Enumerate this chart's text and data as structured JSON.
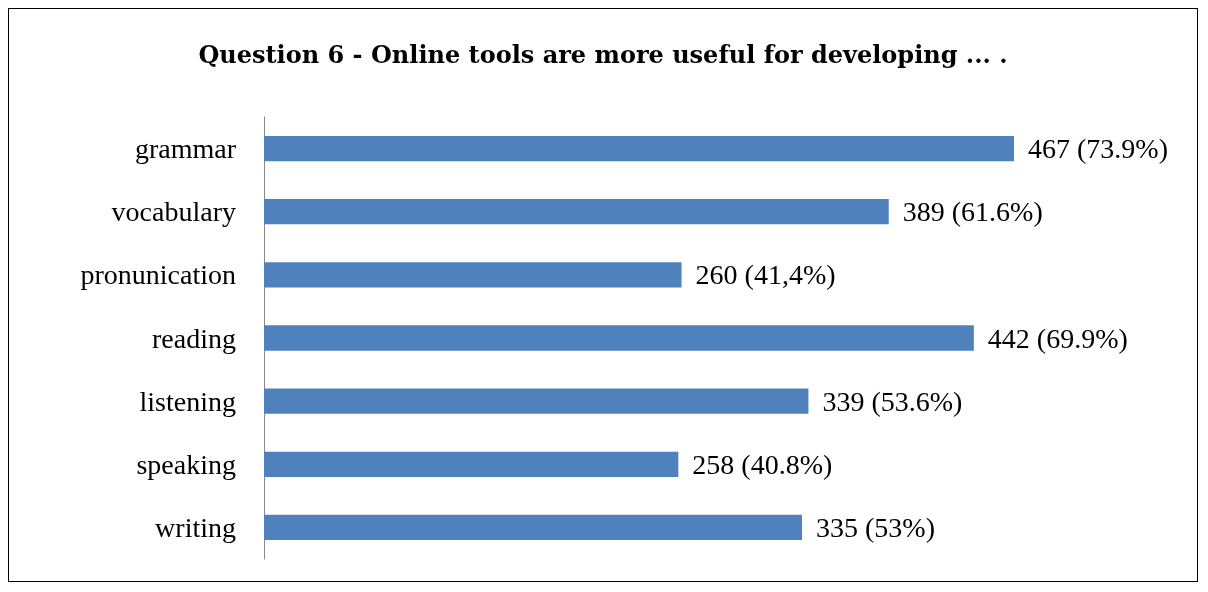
{
  "chart_data": {
    "type": "bar",
    "orientation": "horizontal",
    "title": "Question 6 - Online tools are more useful for developing ... .",
    "categories": [
      "grammar",
      "vocabulary",
      "pronunication",
      "reading",
      "listening",
      "speaking",
      "writing"
    ],
    "values": [
      467,
      389,
      260,
      442,
      339,
      258,
      335
    ],
    "value_labels": [
      "467 (73.9%)",
      "389 (61.6%)",
      "260 (41,4%)",
      "442 (69.9%)",
      "339 (53.6%)",
      "258 (40.8%)",
      "335 (53%)"
    ],
    "color": "#4f81bd",
    "tick_labels": "y"
  }
}
